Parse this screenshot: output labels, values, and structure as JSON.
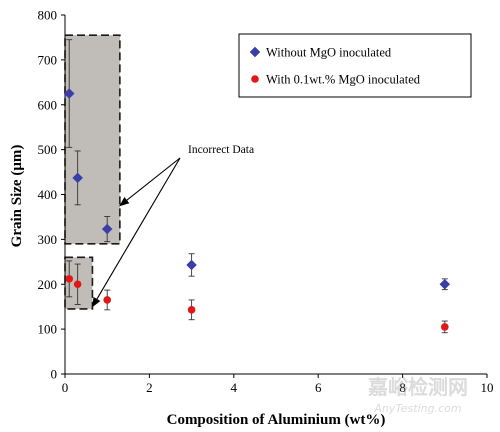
{
  "chart_data": {
    "type": "scatter",
    "xlabel": "Composition of Aluminium (wt%)",
    "ylabel": "Grain Size (μm)",
    "xlim": [
      0,
      10
    ],
    "ylim": [
      0,
      800
    ],
    "x_ticks": [
      0,
      2,
      4,
      6,
      8,
      10
    ],
    "y_ticks": [
      0,
      100,
      200,
      300,
      400,
      500,
      600,
      700,
      800
    ],
    "grid": false,
    "legend_position": "top-right",
    "series": [
      {
        "name": "Without MgO inoculated",
        "marker": "diamond",
        "color": "#3a3fa8",
        "points": [
          {
            "x": 0.1,
            "y": 625,
            "err": 120
          },
          {
            "x": 0.3,
            "y": 437,
            "err": 60
          },
          {
            "x": 1.0,
            "y": 323,
            "err": 28
          },
          {
            "x": 3.0,
            "y": 243,
            "err": 25
          },
          {
            "x": 9.0,
            "y": 200,
            "err": 12
          }
        ]
      },
      {
        "name": "With 0.1wt.% MgO inoculated",
        "marker": "circle",
        "color": "#e01818",
        "points": [
          {
            "x": 0.1,
            "y": 212,
            "err": 40
          },
          {
            "x": 0.3,
            "y": 200,
            "err": 45
          },
          {
            "x": 1.0,
            "y": 165,
            "err": 22
          },
          {
            "x": 3.0,
            "y": 143,
            "err": 22
          },
          {
            "x": 9.0,
            "y": 105,
            "err": 13
          }
        ]
      }
    ],
    "annotation": {
      "text": "Incorrect Data",
      "highlight_regions": [
        {
          "x_range": [
            0,
            1.3
          ],
          "y_range": [
            290,
            755
          ]
        },
        {
          "x_range": [
            0,
            0.65
          ],
          "y_range": [
            145,
            260
          ]
        }
      ],
      "arrow_targets": [
        {
          "x": 1.3,
          "y": 375
        },
        {
          "x": 0.65,
          "y": 150
        }
      ]
    }
  },
  "watermark": {
    "line1": "嘉峪检测网",
    "line2": "AnyTesting.com"
  }
}
